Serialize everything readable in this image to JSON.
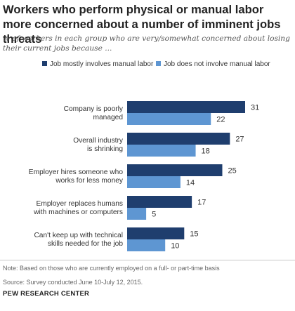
{
  "title": "Workers who perform physical or manual labor more concerned about a number of imminent jobs threats",
  "subtitle": "% of workers in each group who are very/somewhat concerned about losing their current jobs because ...",
  "colors": {
    "series_1": "#1f3e6e",
    "series_2": "#5e96d2"
  },
  "chart_data": {
    "type": "bar",
    "orientation": "horizontal",
    "categories": [
      [
        "Company is poorly",
        "managed"
      ],
      [
        "Overall industry",
        "is shrinking"
      ],
      [
        "Employer hires someone  who",
        "works for less money"
      ],
      [
        "Employer replaces humans",
        "with machines or computers"
      ],
      [
        "Can't keep up with technical",
        "skills needed for the job"
      ]
    ],
    "series": [
      {
        "name": "Job mostly involves manual labor",
        "values": [
          31,
          27,
          25,
          17,
          15
        ]
      },
      {
        "name": "Job does not involve manual labor",
        "values": [
          22,
          18,
          14,
          5,
          10
        ]
      }
    ],
    "xlim": [
      0,
      31
    ],
    "legend_position": "top",
    "grid": false
  },
  "footer": {
    "note": "Note: Based on those who are currently employed on a full- or part-time basis",
    "source": "Source: Survey conducted June 10-July 12, 2015.",
    "org": "PEW RESEARCH CENTER"
  }
}
